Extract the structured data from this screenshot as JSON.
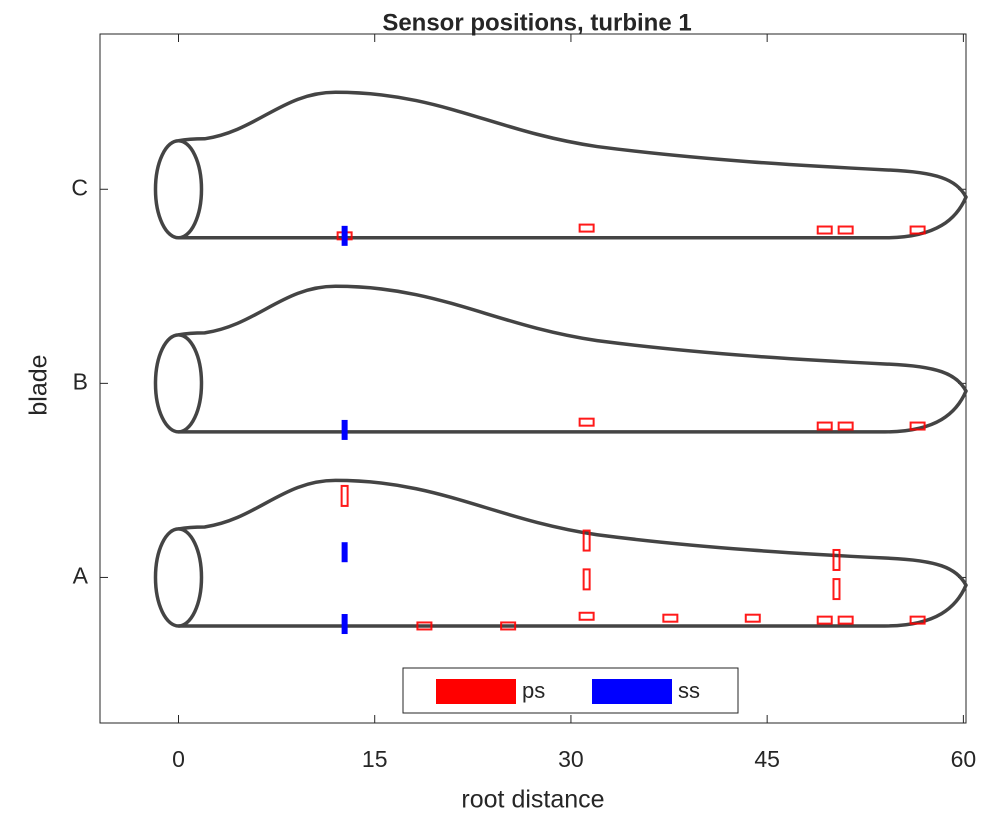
{
  "chart_data": {
    "type": "scatter",
    "title": "Sensor positions, turbine 1",
    "x_label": "root distance",
    "y_label": "blade",
    "xlim": [
      -6,
      60.2
    ],
    "xticks": [
      0,
      15,
      30,
      45,
      60
    ],
    "ylim": [
      0.25,
      3.8
    ],
    "yticks": [
      {
        "value": 1,
        "label": "A"
      },
      {
        "value": 2,
        "label": "B"
      },
      {
        "value": 3,
        "label": "C"
      }
    ],
    "grid": false,
    "legend": "bottom",
    "series": [
      {
        "name": "ps",
        "color": "#ff0000",
        "filled": false,
        "x": [
          12.7,
          31.2,
          31.2,
          31.2,
          50.3,
          50.3,
          18.8,
          25.2,
          37.6,
          43.9,
          49.4,
          51.0,
          56.5,
          31.2,
          49.4,
          51.0,
          56.5,
          31.2,
          49.4,
          51.0,
          56.5,
          12.7
        ],
        "values": [
          1.42,
          1.19,
          0.99,
          0.8,
          1.09,
          0.94,
          0.75,
          0.75,
          0.79,
          0.79,
          0.78,
          0.78,
          0.78,
          1.8,
          1.78,
          1.78,
          1.78,
          2.8,
          2.79,
          2.79,
          2.79,
          2.76
        ]
      },
      {
        "name": "ss",
        "color": "#0000ff",
        "filled": true,
        "x": [
          12.7,
          12.7,
          12.7,
          12.7
        ],
        "values": [
          1.13,
          0.76,
          1.76,
          2.76
        ]
      }
    ]
  }
}
